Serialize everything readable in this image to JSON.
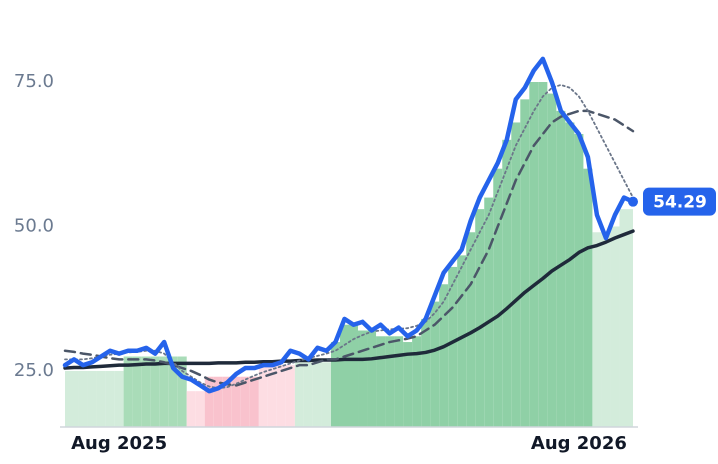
{
  "chart_data": {
    "type": "line",
    "categories": [
      null,
      null,
      null,
      null,
      null,
      null,
      "Aug 2025",
      null,
      null,
      null,
      null,
      null,
      null,
      null,
      null,
      null,
      null,
      null,
      null,
      null,
      null,
      null,
      null,
      null,
      null,
      null,
      null,
      null,
      null,
      null,
      null,
      null,
      null,
      null,
      null,
      null,
      null,
      null,
      null,
      null,
      null,
      null,
      null,
      null,
      null,
      null,
      null,
      null,
      null,
      null,
      null,
      null,
      null,
      null,
      null,
      null,
      null,
      "Aug 2026",
      null,
      null,
      null,
      null,
      null,
      null
    ],
    "ylim": [
      15.3,
      84
    ],
    "yticks": [
      {
        "value": 25,
        "label": "25.0"
      },
      {
        "value": 50,
        "label": "50.0"
      },
      {
        "value": 75,
        "label": "75.0"
      }
    ],
    "bars": {
      "values": [
        25,
        25,
        25,
        25,
        25,
        25,
        25,
        27.5,
        27.5,
        27.5,
        27.5,
        27.5,
        27.5,
        27.5,
        21.5,
        21.5,
        24,
        24,
        24,
        24,
        24,
        24,
        26,
        26,
        26,
        26,
        26.5,
        26.5,
        26.5,
        26.5,
        30,
        33,
        33,
        32,
        32,
        31,
        31,
        31,
        30,
        31,
        34,
        37,
        40,
        43,
        45,
        49,
        53,
        55,
        60,
        65,
        68,
        72,
        75,
        75,
        73,
        70,
        68,
        66,
        60,
        49,
        49,
        50,
        53,
        53
      ],
      "colors": [
        "#d3ecdb",
        "#d3ecdb",
        "#d3ecdb",
        "#d3ecdb",
        "#d3ecdb",
        "#d3ecdb",
        "#d3ecdb",
        "#a9dcb8",
        "#a9dcb8",
        "#a9dcb8",
        "#a9dcb8",
        "#a9dcb8",
        "#a9dcb8",
        "#a9dcb8",
        "#fddde3",
        "#fddde3",
        "#f9c2cd",
        "#f9c2cd",
        "#f9c2cd",
        "#f9c2cd",
        "#f9c2cd",
        "#f9c2cd",
        "#fddde3",
        "#fddde3",
        "#fddde3",
        "#fddde3",
        "#d3ecdb",
        "#d3ecdb",
        "#d3ecdb",
        "#d3ecdb",
        "#8fd0a6",
        "#8fd0a6",
        "#8fd0a6",
        "#8fd0a6",
        "#8fd0a6",
        "#8fd0a6",
        "#8fd0a6",
        "#8fd0a6",
        "#8fd0a6",
        "#8fd0a6",
        "#8fd0a6",
        "#8fd0a6",
        "#8fd0a6",
        "#8fd0a6",
        "#8fd0a6",
        "#8fd0a6",
        "#8fd0a6",
        "#8fd0a6",
        "#8fd0a6",
        "#8fd0a6",
        "#8fd0a6",
        "#8fd0a6",
        "#8fd0a6",
        "#8fd0a6",
        "#8fd0a6",
        "#8fd0a6",
        "#8fd0a6",
        "#8fd0a6",
        "#8fd0a6",
        "#d3ecdb",
        "#d3ecdb",
        "#d3ecdb",
        "#d3ecdb",
        "#d3ecdb"
      ]
    },
    "series": [
      {
        "color": "#1f2a3a",
        "dash": "solid",
        "width": 3.5,
        "values": [
          25.5,
          25.6,
          25.6,
          25.7,
          25.8,
          25.9,
          26,
          26,
          26.1,
          26.2,
          26.2,
          26.3,
          26.3,
          26.3,
          26.3,
          26.3,
          26.3,
          26.4,
          26.4,
          26.4,
          26.5,
          26.5,
          26.6,
          26.6,
          26.7,
          26.7,
          26.8,
          26.8,
          26.9,
          26.9,
          26.9,
          27,
          27,
          27,
          27.1,
          27.3,
          27.5,
          27.7,
          27.9,
          28,
          28.2,
          28.6,
          29.2,
          30,
          30.8,
          31.6,
          32.5,
          33.5,
          34.5,
          35.8,
          37.2,
          38.6,
          39.8,
          41,
          42.3,
          43.3,
          44.3,
          45.5,
          46.3,
          46.7,
          47.3,
          48,
          48.6,
          49.2
        ]
      },
      {
        "color": "#4b5668",
        "dash": "dashed",
        "width": 2.5,
        "values": [
          28.5,
          28.3,
          28,
          27.8,
          27.5,
          27.2,
          27,
          27,
          27,
          27,
          26.8,
          26.5,
          26,
          25.5,
          25,
          24.3,
          23.5,
          23,
          22.7,
          22.5,
          23,
          23.5,
          24,
          24.5,
          25,
          25.5,
          26,
          26,
          26.5,
          27,
          27,
          27.5,
          28,
          28.5,
          29,
          29.5,
          30,
          30.3,
          30.6,
          31,
          32,
          33,
          34.5,
          36,
          38,
          40,
          43,
          46,
          50,
          54,
          58,
          61,
          64,
          66,
          68,
          69,
          69.5,
          70,
          70,
          69.5,
          69,
          68.5,
          67.5,
          66.5
        ]
      },
      {
        "color": "#6b7689",
        "dash": "dotted",
        "width": 1.8,
        "values": [
          27,
          27,
          27,
          27.2,
          27.5,
          27.8,
          28,
          28.2,
          28.3,
          28.5,
          28.5,
          28,
          26.5,
          25,
          24,
          23,
          22.3,
          22,
          22.2,
          22.8,
          23.5,
          24.2,
          24.8,
          25.3,
          25.8,
          26.3,
          26.8,
          27.2,
          27.6,
          28,
          28.5,
          29.5,
          30.5,
          31.2,
          31.8,
          32,
          32.2,
          32.3,
          32.4,
          32.8,
          33.5,
          35,
          37,
          40,
          43,
          46,
          49,
          52,
          56,
          60,
          64,
          67,
          70,
          72.5,
          74,
          74.5,
          74,
          72.5,
          70,
          67,
          64,
          61,
          58,
          55
        ]
      },
      {
        "color": "#2563eb",
        "dash": "solid",
        "width": 4.5,
        "values": [
          26,
          27,
          26,
          26.5,
          27.5,
          28.5,
          28,
          28.5,
          28.5,
          29,
          28,
          30,
          25.5,
          24,
          23.5,
          22.5,
          21.5,
          22,
          23,
          24.5,
          25.5,
          25.5,
          26,
          26,
          26.5,
          28.5,
          28,
          27,
          29,
          28.5,
          30,
          34,
          33,
          33.5,
          32,
          33,
          31.5,
          32.5,
          31,
          32,
          34,
          38,
          42,
          44,
          46,
          51,
          55,
          58,
          61,
          65,
          72,
          74,
          77,
          79,
          75,
          70,
          68,
          66,
          62,
          52,
          48,
          52,
          55,
          54.29
        ]
      }
    ]
  }
}
